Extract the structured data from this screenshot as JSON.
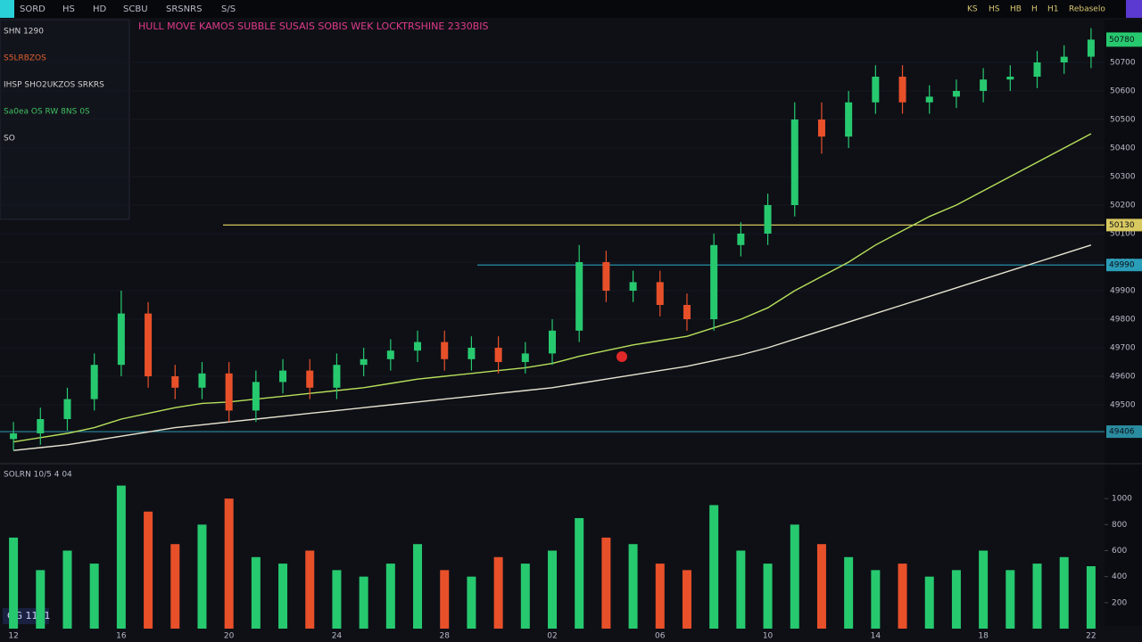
{
  "toolbar": {
    "items": [
      "SORD",
      "HS",
      "HD",
      "SCBU",
      "SRSNRS",
      "S/S"
    ],
    "right_items": [
      "KS",
      "HS",
      "HB",
      "H",
      "H1",
      "Rebaselo"
    ]
  },
  "info_panel": {
    "lines": [
      "SHN 1290",
      "S5LRBZOS",
      "IHSP SHO2UKZOS SRKRS",
      "Sa0ea OS RW 8NS 0S",
      "SO"
    ]
  },
  "badge": "GG 1181",
  "chart_data": {
    "type": "candlestick",
    "title": "HULL MOVE KAMOS SUBBLE SUSAIS SOBIS WEK LOCKTRSHINE 2330BIS",
    "categories": [
      "12",
      null,
      null,
      null,
      "16",
      null,
      null,
      null,
      "20",
      null,
      null,
      null,
      "24",
      null,
      null,
      null,
      "28",
      null,
      null,
      null,
      "02",
      null,
      null,
      null,
      "06",
      null,
      null,
      null,
      "10",
      null,
      null,
      null,
      "14",
      null,
      null,
      null,
      "18",
      null,
      null,
      null,
      "22"
    ],
    "open": [
      49380,
      49400,
      49450,
      49520,
      49640,
      49820,
      49600,
      49560,
      49610,
      49480,
      49580,
      49620,
      49560,
      49640,
      49660,
      49690,
      49720,
      49660,
      49700,
      49650,
      49680,
      49760,
      50000,
      49900,
      49930,
      49850,
      49800,
      50060,
      50100,
      50200,
      50500,
      50440,
      50560,
      50650,
      50560,
      50580,
      50600,
      50640,
      50650,
      50700,
      50720
    ],
    "high": [
      49440,
      49490,
      49560,
      49680,
      49900,
      49860,
      49640,
      49650,
      49650,
      49620,
      49660,
      49660,
      49680,
      49700,
      49730,
      49760,
      49760,
      49740,
      49740,
      49720,
      49800,
      50060,
      50040,
      49970,
      49970,
      49890,
      50100,
      50140,
      50240,
      50560,
      50560,
      50600,
      50690,
      50690,
      50620,
      50640,
      50680,
      50690,
      50740,
      50760,
      50820
    ],
    "low": [
      49340,
      49360,
      49410,
      49480,
      49600,
      49560,
      49520,
      49520,
      49440,
      49440,
      49540,
      49520,
      49520,
      49600,
      49620,
      49650,
      49620,
      49620,
      49610,
      49610,
      49640,
      49720,
      49860,
      49860,
      49810,
      49760,
      49760,
      50020,
      50060,
      50160,
      50380,
      50400,
      50520,
      50520,
      50520,
      50540,
      50560,
      50600,
      50610,
      50660,
      50680
    ],
    "close": [
      49400,
      49450,
      49520,
      49640,
      49820,
      49600,
      49560,
      49610,
      49480,
      49580,
      49620,
      49560,
      49640,
      49660,
      49690,
      49720,
      49660,
      49700,
      49650,
      49680,
      49760,
      50000,
      49900,
      49930,
      49850,
      49800,
      50060,
      50100,
      50200,
      50500,
      50440,
      50560,
      50650,
      50560,
      50580,
      50600,
      50640,
      50650,
      50700,
      50720,
      50780
    ],
    "up_color": "#27c96f",
    "down_color": "#e8502a",
    "ylim": [
      49300,
      50850
    ],
    "yticks": [
      49400,
      49500,
      49600,
      49700,
      49800,
      49900,
      50000,
      50100,
      50200,
      50300,
      50400,
      50500,
      50600,
      50700
    ],
    "series": [
      {
        "color": "#b8e05a",
        "values": [
          49370,
          49385,
          49400,
          49420,
          49450,
          49470,
          49490,
          49505,
          49510,
          49520,
          49530,
          49540,
          49550,
          49560,
          49575,
          49590,
          49600,
          49610,
          49620,
          49630,
          49645,
          49670,
          49690,
          49710,
          49725,
          49740,
          49770,
          49800,
          49840,
          49900,
          49950,
          50000,
          50060,
          50110,
          50160,
          50200,
          50250,
          50300,
          50350,
          50400,
          50450
        ]
      },
      {
        "color": "#e8e4d0",
        "values": [
          49340,
          49350,
          49360,
          49375,
          49390,
          49405,
          49420,
          49430,
          49440,
          49450,
          49460,
          49470,
          49480,
          49490,
          49500,
          49510,
          49520,
          49530,
          49540,
          49550,
          49560,
          49575,
          49590,
          49605,
          49620,
          49635,
          49655,
          49675,
          49700,
          49730,
          49760,
          49790,
          49820,
          49850,
          49880,
          49910,
          49940,
          49970,
          50000,
          50030,
          50060
        ]
      }
    ],
    "levels": [
      {
        "value": 50130,
        "color": "#d8c860"
      },
      {
        "value": 49990,
        "color": "#2a9db8"
      },
      {
        "value": 49406,
        "color": "#2a8ca0"
      }
    ],
    "volume": {
      "label": "SOLRN 10/5 4 04",
      "values": [
        700,
        450,
        600,
        500,
        1100,
        900,
        650,
        800,
        1000,
        550,
        500,
        600,
        450,
        400,
        500,
        650,
        450,
        400,
        550,
        500,
        600,
        850,
        700,
        650,
        500,
        450,
        950,
        600,
        500,
        800,
        650,
        550,
        450,
        500,
        400,
        450,
        600,
        450,
        500,
        550,
        480
      ],
      "ylim": [
        0,
        1200
      ],
      "yticks": [
        200,
        400,
        600,
        800,
        1000
      ]
    }
  }
}
